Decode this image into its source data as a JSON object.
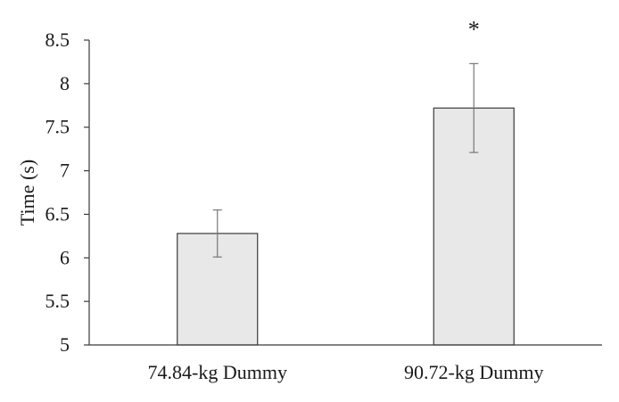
{
  "chart_data": {
    "type": "bar",
    "title": "",
    "xlabel": "",
    "ylabel": "Time (s)",
    "ylim": [
      5,
      8.5
    ],
    "yticks": [
      "5",
      "5.5",
      "6",
      "6.5",
      "7",
      "7.5",
      "8",
      "8.5"
    ],
    "grid": false,
    "categories": [
      "74.84-kg Dummy",
      "90.72-kg Dummy"
    ],
    "values": [
      6.28,
      7.72
    ],
    "error": [
      0.27,
      0.51
    ],
    "annotations": [
      {
        "category": "90.72-kg Dummy",
        "text": "*"
      }
    ],
    "colors": {
      "bar_fill": "#e8e8e8",
      "bar_stroke": "#3a3a3a",
      "axis": "#3a3a3a",
      "error_bar": "#777777"
    }
  }
}
